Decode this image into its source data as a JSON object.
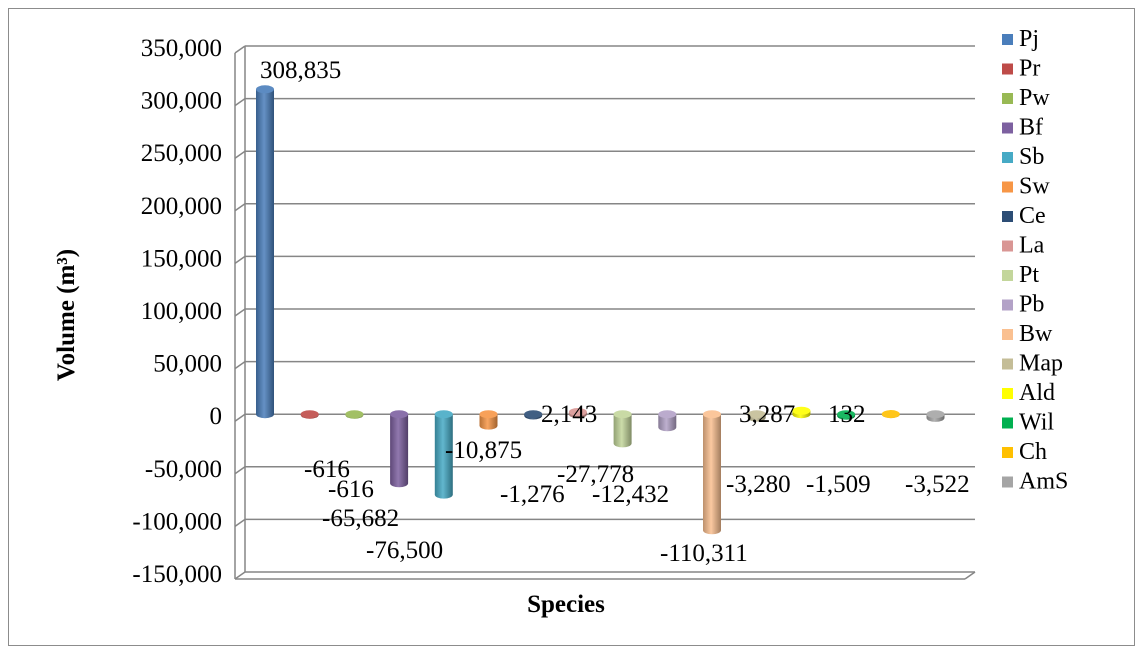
{
  "chart_data": {
    "type": "bar",
    "style": "3d-cylinder",
    "xlabel": "Species",
    "ylabel": "Volume (m³)",
    "ylim": [
      -150000,
      350000
    ],
    "yticks": [
      350000,
      300000,
      250000,
      200000,
      150000,
      100000,
      50000,
      0,
      -50000,
      -100000,
      -150000
    ],
    "ytick_labels": [
      "350,000",
      "300,000",
      "250,000",
      "200,000",
      "150,000",
      "100,000",
      "50,000",
      "0",
      "-50,000",
      "-100,000",
      "-150,000"
    ],
    "grid": true,
    "legend_position": "right",
    "series": [
      {
        "name": "Pj",
        "value": 308835,
        "label": "308,835",
        "color": "#4a7ebb"
      },
      {
        "name": "Pr",
        "value": -616,
        "label": "-616",
        "color": "#be4b48"
      },
      {
        "name": "Pw",
        "value": -616,
        "label": "-616",
        "color": "#98b954"
      },
      {
        "name": "Bf",
        "value": -65682,
        "label": "-65,682",
        "color": "#7d60a0"
      },
      {
        "name": "Sb",
        "value": -76500,
        "label": "-76,500",
        "color": "#46aac5"
      },
      {
        "name": "Sw",
        "value": -10875,
        "label": "-10,875",
        "color": "#f79646"
      },
      {
        "name": "Ce",
        "value": -1276,
        "label": "-1,276",
        "color": "#2c4d75"
      },
      {
        "name": "La",
        "value": 2143,
        "label": "2,143",
        "color": "#d99694"
      },
      {
        "name": "Pt",
        "value": -27778,
        "label": "-27,778",
        "color": "#c3d69b"
      },
      {
        "name": "Pb",
        "value": -12432,
        "label": "-12,432",
        "color": "#b3a2c7"
      },
      {
        "name": "Bw",
        "value": -110311,
        "label": "-110,311",
        "color": "#fac090"
      },
      {
        "name": "Map",
        "value": -3280,
        "label": "-3,280",
        "color": "#c4bd97"
      },
      {
        "name": "Ald",
        "value": 3287,
        "label": "3,287",
        "color": "#ffff00"
      },
      {
        "name": "Wil",
        "value": -1509,
        "label": "-1,509",
        "color": "#00b050"
      },
      {
        "name": "Ch",
        "value": 132,
        "label": "132",
        "color": "#ffc000"
      },
      {
        "name": "AmS",
        "value": -3522,
        "label": "-3,522",
        "color": "#a5a5a5"
      }
    ]
  }
}
